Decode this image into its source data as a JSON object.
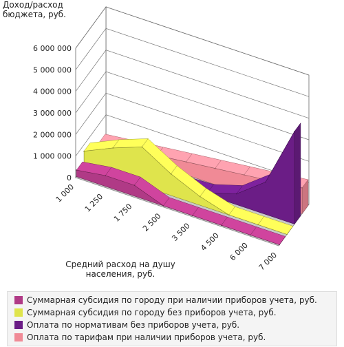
{
  "chart_data": {
    "type": "area",
    "title": "",
    "ylabel_line1": "Доход/расход",
    "ylabel_line2": "бюджета, руб.",
    "xlabel_line1": "Средний расход на душу",
    "xlabel_line2": "населения, руб.",
    "categories": [
      "1 000",
      "1 250",
      "1 750",
      "2 500",
      "3 500",
      "4 500",
      "6 000",
      "7 000"
    ],
    "y_ticks": [
      "0",
      "1 000 000",
      "2 000 000",
      "3 000 000",
      "4 000 000",
      "5 000 000",
      "6 000 000"
    ],
    "ylim": [
      0,
      6000000
    ],
    "grid": true,
    "legend_position": "bottom",
    "series": [
      {
        "name": "Суммарная субсидия по городу при наличии приборов учета, руб.",
        "color": "#b03a86",
        "values": [
          300000,
          500000,
          500000,
          0,
          0,
          0,
          0,
          0
        ]
      },
      {
        "name": "Суммарная субсидия по городу без приборов учета, руб.",
        "color": "#dfe44c",
        "values": [
          700000,
          1300000,
          1800000,
          1000000,
          400000,
          0,
          0,
          0
        ]
      },
      {
        "name": "Оплата по нормативам без приборов учета, руб.",
        "color": "#6b1d86",
        "values": [
          0,
          0,
          0,
          50000,
          100000,
          500000,
          1500000,
          4300000
        ]
      },
      {
        "name": "Оплата по тарифам при наличии приборов учета, руб.",
        "color": "#f08a96",
        "values": [
          150000,
          300000,
          450000,
          600000,
          750000,
          900000,
          1050000,
          1200000
        ]
      }
    ]
  }
}
